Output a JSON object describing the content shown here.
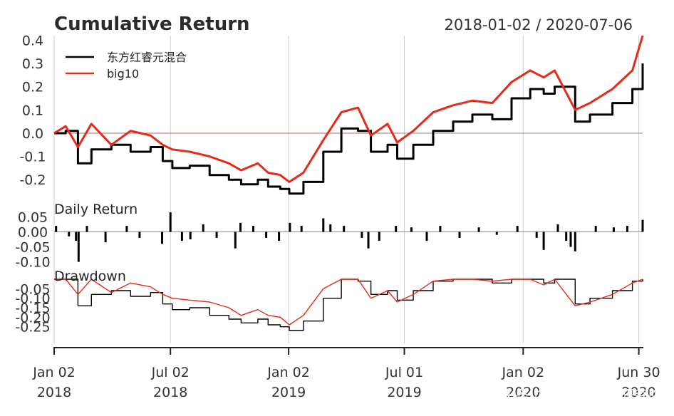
{
  "chart_data": [
    {
      "type": "line",
      "panel": "cumulative",
      "title": "Cumulative Return",
      "date_range": "2018-01-02 / 2020-07-06",
      "ylim": [
        -0.27,
        0.42
      ],
      "yticks": [
        0.4,
        0.3,
        0.2,
        0.1,
        0.0,
        -0.1,
        -0.2
      ],
      "ytick_labels": [
        "0.4",
        "0.3",
        "0.2",
        "0.1",
        "0.0",
        "-0.1",
        "-0.2"
      ],
      "series": [
        {
          "name": "东方红睿元混合",
          "color": "#000000",
          "x": [
            "2018-01-02",
            "2018-01-20",
            "2018-02-08",
            "2018-03-01",
            "2018-04-01",
            "2018-05-01",
            "2018-06-01",
            "2018-06-20",
            "2018-07-05",
            "2018-08-01",
            "2018-09-01",
            "2018-10-01",
            "2018-10-20",
            "2018-11-15",
            "2018-12-01",
            "2018-12-20",
            "2019-01-03",
            "2019-01-25",
            "2019-02-25",
            "2019-03-25",
            "2019-04-20",
            "2019-05-10",
            "2019-06-05",
            "2019-06-20",
            "2019-07-15",
            "2019-08-15",
            "2019-09-15",
            "2019-10-15",
            "2019-11-15",
            "2019-12-15",
            "2020-01-13",
            "2020-02-03",
            "2020-02-20",
            "2020-03-23",
            "2020-04-15",
            "2020-05-20",
            "2020-06-20",
            "2020-07-06"
          ],
          "y": [
            0.0,
            0.01,
            -0.13,
            -0.07,
            -0.05,
            -0.08,
            -0.06,
            -0.12,
            -0.15,
            -0.14,
            -0.18,
            -0.2,
            -0.22,
            -0.2,
            -0.23,
            -0.24,
            -0.26,
            -0.21,
            -0.08,
            0.02,
            0.01,
            -0.08,
            -0.05,
            -0.11,
            -0.05,
            0.01,
            0.05,
            0.08,
            0.06,
            0.15,
            0.19,
            0.17,
            0.2,
            0.05,
            0.08,
            0.13,
            0.19,
            0.3
          ]
        },
        {
          "name": "big10",
          "color": "#e62a1a",
          "x": [
            "2018-01-02",
            "2018-01-20",
            "2018-02-08",
            "2018-03-01",
            "2018-04-01",
            "2018-05-01",
            "2018-06-01",
            "2018-06-20",
            "2018-07-05",
            "2018-08-01",
            "2018-09-01",
            "2018-10-01",
            "2018-10-20",
            "2018-11-15",
            "2018-12-01",
            "2018-12-20",
            "2019-01-03",
            "2019-01-25",
            "2019-02-25",
            "2019-03-25",
            "2019-04-20",
            "2019-05-10",
            "2019-06-05",
            "2019-06-20",
            "2019-07-15",
            "2019-08-15",
            "2019-09-15",
            "2019-10-15",
            "2019-11-15",
            "2019-12-15",
            "2020-01-13",
            "2020-02-03",
            "2020-02-20",
            "2020-03-23",
            "2020-04-15",
            "2020-05-20",
            "2020-06-20",
            "2020-07-06"
          ],
          "y": [
            0.0,
            0.03,
            -0.06,
            0.04,
            -0.05,
            0.01,
            -0.01,
            -0.05,
            -0.07,
            -0.08,
            -0.1,
            -0.13,
            -0.16,
            -0.13,
            -0.17,
            -0.18,
            -0.21,
            -0.17,
            -0.03,
            0.09,
            0.11,
            -0.01,
            0.04,
            -0.04,
            0.01,
            0.09,
            0.12,
            0.14,
            0.13,
            0.22,
            0.27,
            0.24,
            0.27,
            0.1,
            0.13,
            0.19,
            0.27,
            0.42
          ]
        }
      ]
    },
    {
      "type": "bar",
      "panel": "daily",
      "title": "Daily Return",
      "ylim": [
        -0.12,
        0.07
      ],
      "yticks": [
        0.05,
        0.0,
        -0.05,
        -0.1
      ],
      "ytick_labels": [
        "0.05",
        "0.00",
        "-0.05",
        "-0.10"
      ],
      "series": [
        {
          "name": "东方红睿元混合",
          "color": "#000000",
          "x": [
            "2018-01-05",
            "2018-01-25",
            "2018-02-05",
            "2018-02-09",
            "2018-02-22",
            "2018-03-23",
            "2018-04-25",
            "2018-05-15",
            "2018-06-19",
            "2018-07-02",
            "2018-07-20",
            "2018-08-02",
            "2018-08-22",
            "2018-09-12",
            "2018-10-11",
            "2018-10-19",
            "2018-11-08",
            "2018-11-28",
            "2018-12-18",
            "2019-01-04",
            "2019-01-22",
            "2019-02-25",
            "2019-03-08",
            "2019-03-29",
            "2019-04-26",
            "2019-05-06",
            "2019-05-23",
            "2019-06-18",
            "2019-07-12",
            "2019-08-05",
            "2019-08-26",
            "2019-09-25",
            "2019-10-25",
            "2019-11-22",
            "2019-12-24",
            "2020-01-23",
            "2020-02-03",
            "2020-02-25",
            "2020-03-09",
            "2020-03-16",
            "2020-03-23",
            "2020-04-24",
            "2020-05-22",
            "2020-06-12",
            "2020-07-06"
          ],
          "y": [
            0.02,
            -0.015,
            -0.03,
            -0.1,
            0.02,
            -0.035,
            0.02,
            -0.02,
            -0.04,
            0.065,
            -0.03,
            -0.025,
            0.025,
            -0.02,
            -0.055,
            0.03,
            0.02,
            -0.02,
            -0.03,
            0.03,
            0.02,
            0.045,
            0.025,
            0.02,
            -0.02,
            -0.055,
            -0.03,
            0.02,
            0.015,
            -0.03,
            0.02,
            -0.02,
            0.015,
            -0.01,
            0.02,
            -0.02,
            -0.06,
            0.025,
            -0.03,
            -0.05,
            -0.065,
            0.02,
            0.015,
            0.02,
            0.04
          ]
        }
      ]
    },
    {
      "type": "line",
      "panel": "drawdown",
      "title": "Drawdown",
      "ylim": [
        -0.285,
        0.0
      ],
      "yticks": [
        -0.05,
        -0.1,
        -0.15,
        -0.2,
        -0.25
      ],
      "ytick_labels": [
        "-0.05",
        "-0.10",
        "-0.15",
        "-0.20",
        "-0.25"
      ],
      "series": [
        {
          "name": "东方红睿元混合",
          "color": "#000000",
          "x": [
            "2018-01-02",
            "2018-01-20",
            "2018-02-08",
            "2018-03-01",
            "2018-04-01",
            "2018-05-01",
            "2018-06-01",
            "2018-06-20",
            "2018-07-05",
            "2018-08-01",
            "2018-09-01",
            "2018-10-01",
            "2018-10-20",
            "2018-11-15",
            "2018-12-01",
            "2018-12-20",
            "2019-01-03",
            "2019-01-25",
            "2019-02-25",
            "2019-03-25",
            "2019-04-20",
            "2019-05-10",
            "2019-06-05",
            "2019-06-20",
            "2019-07-15",
            "2019-08-15",
            "2019-09-15",
            "2019-10-15",
            "2019-11-15",
            "2019-12-15",
            "2020-01-13",
            "2020-02-03",
            "2020-02-20",
            "2020-03-23",
            "2020-04-15",
            "2020-05-20",
            "2020-06-20",
            "2020-07-06"
          ],
          "y": [
            0.0,
            0.0,
            -0.14,
            -0.08,
            -0.06,
            -0.09,
            -0.07,
            -0.13,
            -0.16,
            -0.15,
            -0.19,
            -0.21,
            -0.23,
            -0.21,
            -0.24,
            -0.25,
            -0.27,
            -0.22,
            -0.1,
            0.0,
            -0.01,
            -0.08,
            -0.06,
            -0.11,
            -0.06,
            -0.01,
            0.0,
            0.0,
            -0.02,
            0.0,
            0.0,
            -0.02,
            0.0,
            -0.13,
            -0.1,
            -0.06,
            -0.01,
            0.0
          ]
        },
        {
          "name": "big10",
          "color": "#e62a1a",
          "x": [
            "2018-01-02",
            "2018-01-20",
            "2018-02-08",
            "2018-03-01",
            "2018-04-01",
            "2018-05-01",
            "2018-06-01",
            "2018-06-20",
            "2018-07-05",
            "2018-08-01",
            "2018-09-01",
            "2018-10-01",
            "2018-10-20",
            "2018-11-15",
            "2018-12-01",
            "2018-12-20",
            "2019-01-03",
            "2019-01-25",
            "2019-02-25",
            "2019-03-25",
            "2019-04-20",
            "2019-05-10",
            "2019-06-05",
            "2019-06-20",
            "2019-07-15",
            "2019-08-15",
            "2019-09-15",
            "2019-10-15",
            "2019-11-15",
            "2019-12-15",
            "2020-01-13",
            "2020-02-03",
            "2020-02-20",
            "2020-03-23",
            "2020-04-15",
            "2020-05-20",
            "2020-06-20",
            "2020-07-06"
          ],
          "y": [
            0.0,
            0.0,
            -0.08,
            0.0,
            -0.07,
            -0.02,
            -0.04,
            -0.08,
            -0.1,
            -0.11,
            -0.12,
            -0.15,
            -0.19,
            -0.16,
            -0.19,
            -0.2,
            -0.24,
            -0.19,
            -0.05,
            0.0,
            0.0,
            -0.1,
            -0.06,
            -0.12,
            -0.08,
            -0.01,
            0.0,
            0.0,
            -0.01,
            0.0,
            0.0,
            -0.03,
            0.0,
            -0.14,
            -0.12,
            -0.08,
            -0.02,
            0.0
          ]
        }
      ]
    }
  ],
  "x_axis": {
    "start": "2018-01-02",
    "end": "2020-07-06",
    "ticks": [
      {
        "date": "2018-01-02",
        "label1": "Jan 02",
        "label2": "2018"
      },
      {
        "date": "2018-07-02",
        "label1": "Jul 02",
        "label2": "2018"
      },
      {
        "date": "2019-01-02",
        "label1": "Jan 02",
        "label2": "2019"
      },
      {
        "date": "2019-07-01",
        "label1": "Jul 01",
        "label2": "2019"
      },
      {
        "date": "2020-01-02",
        "label1": "Jan 02",
        "label2": "2020"
      },
      {
        "date": "2020-06-30",
        "label1": "Jun 30",
        "label2": "2020"
      }
    ]
  },
  "watermark": "头条 @猫头鹰基金研究院"
}
